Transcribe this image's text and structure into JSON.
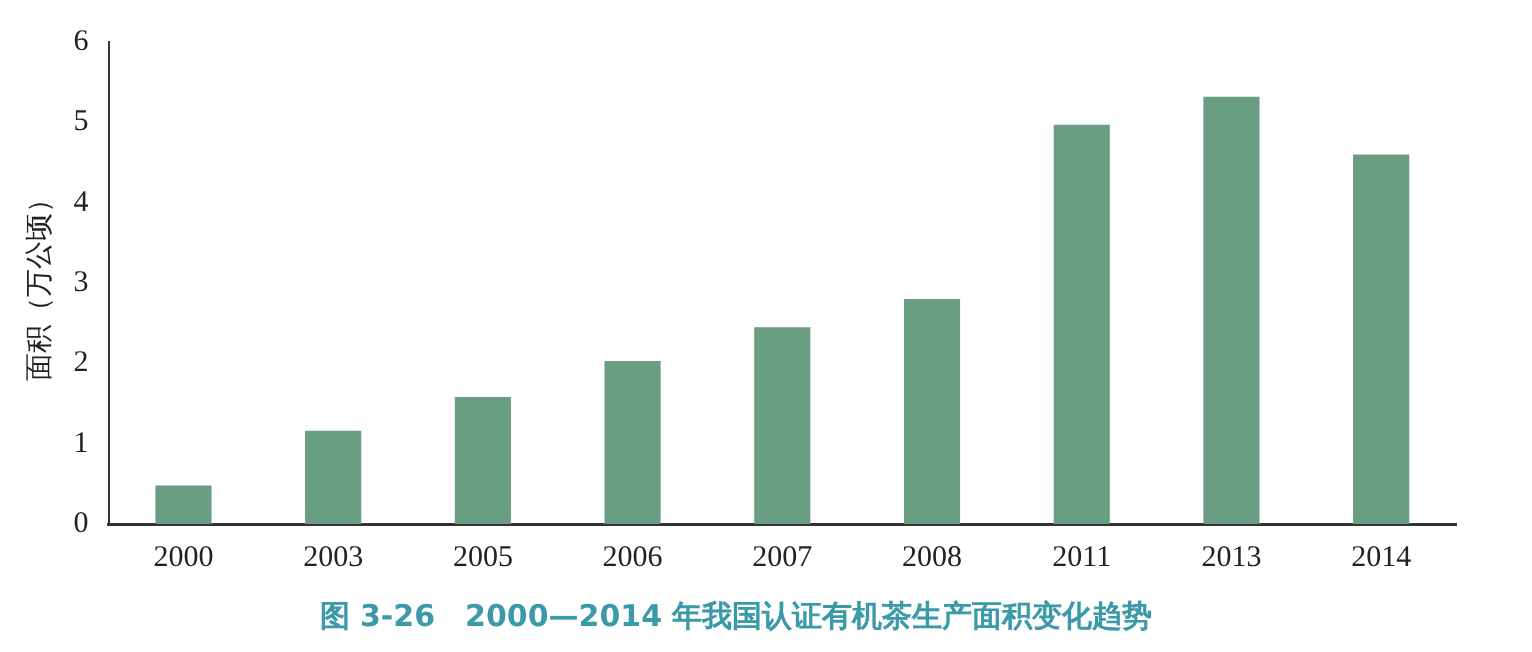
{
  "chart_data": {
    "type": "bar",
    "title": "图 3-26　2000—2014 年我国认证有机茶生产面积变化趋势",
    "ylabel": "面积（万公顷）",
    "categories": [
      "2000",
      "2003",
      "2005",
      "2006",
      "2007",
      "2008",
      "2011",
      "2013",
      "2014"
    ],
    "values": [
      0.48,
      1.16,
      1.58,
      2.03,
      2.45,
      2.8,
      4.97,
      5.32,
      4.6
    ],
    "color": "#6a9e82",
    "ylim": [
      0,
      6
    ],
    "yticks": [
      0,
      1,
      2,
      3,
      4,
      5,
      6
    ],
    "grid": false,
    "legend": false
  }
}
